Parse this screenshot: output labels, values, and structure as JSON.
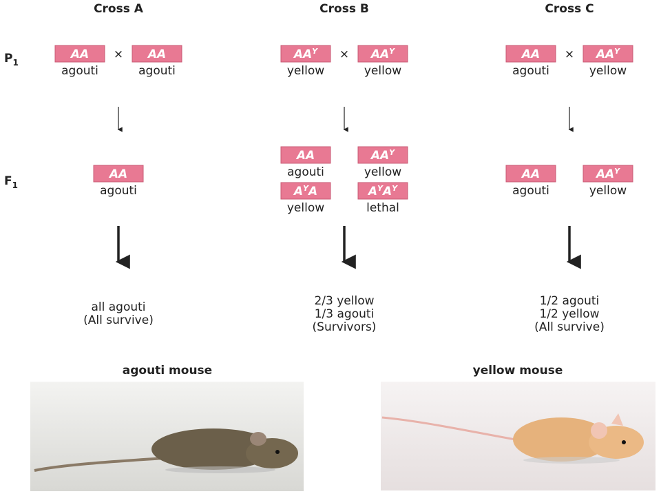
{
  "crosses": [
    {
      "title": "Cross A",
      "parents": [
        {
          "genotype": [
            {
              "text": "AA"
            }
          ],
          "phenotype": "agouti"
        },
        {
          "genotype": [
            {
              "text": "AA"
            }
          ],
          "phenotype": "agouti"
        }
      ],
      "cross_symbol": "×",
      "offspring": [
        {
          "genotype": [
            {
              "text": "AA"
            }
          ],
          "phenotype": "agouti"
        }
      ],
      "outcome": [
        "all agouti",
        "(All survive)"
      ]
    },
    {
      "title": "Cross B",
      "parents": [
        {
          "genotype": [
            {
              "text": "AA"
            },
            {
              "sup": "Y"
            }
          ],
          "phenotype": "yellow"
        },
        {
          "genotype": [
            {
              "text": "AA"
            },
            {
              "sup": "Y"
            }
          ],
          "phenotype": "yellow"
        }
      ],
      "cross_symbol": "×",
      "offspring": [
        {
          "genotype": [
            {
              "text": "AA"
            }
          ],
          "phenotype": "agouti"
        },
        {
          "genotype": [
            {
              "text": "AA"
            },
            {
              "sup": "Y"
            }
          ],
          "phenotype": "yellow"
        },
        {
          "genotype": [
            {
              "text": "A"
            },
            {
              "sup": "Y"
            },
            {
              "text": "A"
            }
          ],
          "phenotype": "yellow"
        },
        {
          "genotype": [
            {
              "text": "A"
            },
            {
              "sup": "Y"
            },
            {
              "text": "A"
            },
            {
              "sup": "Y"
            }
          ],
          "phenotype": "lethal"
        }
      ],
      "outcome": [
        "2/3 yellow",
        "1/3 agouti",
        "(Survivors)"
      ]
    },
    {
      "title": "Cross C",
      "parents": [
        {
          "genotype": [
            {
              "text": "AA"
            }
          ],
          "phenotype": "agouti"
        },
        {
          "genotype": [
            {
              "text": "AA"
            },
            {
              "sup": "Y"
            }
          ],
          "phenotype": "yellow"
        }
      ],
      "cross_symbol": "×",
      "offspring": [
        {
          "genotype": [
            {
              "text": "AA"
            }
          ],
          "phenotype": "agouti"
        },
        {
          "genotype": [
            {
              "text": "AA"
            },
            {
              "sup": "Y"
            }
          ],
          "phenotype": "yellow"
        }
      ],
      "outcome": [
        "1/2 agouti",
        "1/2 yellow",
        "(All survive)"
      ]
    }
  ],
  "rows": {
    "p1": {
      "text": "P",
      "sub": "1"
    },
    "f1": {
      "text": "F",
      "sub": "1"
    }
  },
  "photos": [
    {
      "title": "agouti mouse"
    },
    {
      "title": "yellow mouse"
    }
  ]
}
